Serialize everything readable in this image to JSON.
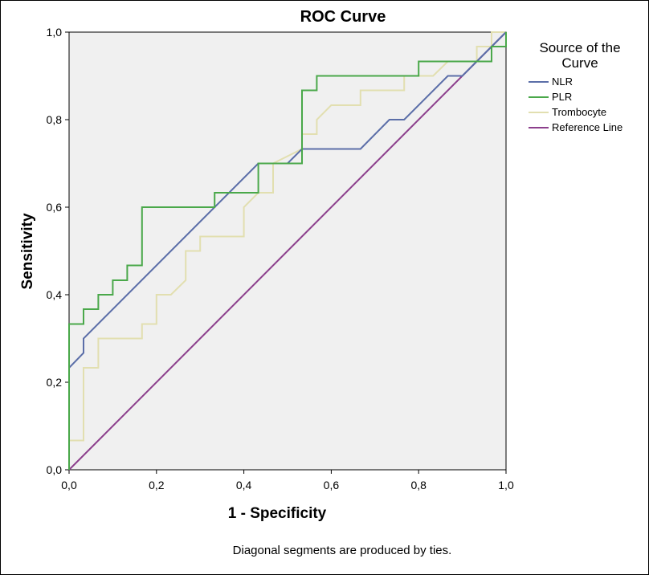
{
  "chart_data": {
    "type": "line",
    "title": "ROC Curve",
    "xlabel": "1 - Specificity",
    "ylabel": "Sensitivity",
    "xlim": [
      0,
      1
    ],
    "ylim": [
      0,
      1
    ],
    "xticks": [
      "0,0",
      "0,2",
      "0,4",
      "0,6",
      "0,8",
      "1,0"
    ],
    "yticks": [
      "0,0",
      "0,2",
      "0,4",
      "0,6",
      "0,8",
      "1,0"
    ],
    "tick_values": [
      0,
      0.2,
      0.4,
      0.6,
      0.8,
      1.0
    ],
    "grid": false,
    "plot_background": "#f0f0f0",
    "legend": {
      "position": "right",
      "title_lines": [
        "Source of the",
        "Curve"
      ]
    },
    "footnote": "Diagonal segments are produced by ties.",
    "series": [
      {
        "name": "NLR",
        "color": "#5b6ea8",
        "points": [
          [
            0,
            0
          ],
          [
            0,
            0.233
          ],
          [
            0.033,
            0.267
          ],
          [
            0.033,
            0.3
          ],
          [
            0.433,
            0.7
          ],
          [
            0.5,
            0.7
          ],
          [
            0.533,
            0.733
          ],
          [
            0.667,
            0.733
          ],
          [
            0.733,
            0.8
          ],
          [
            0.767,
            0.8
          ],
          [
            0.867,
            0.9
          ],
          [
            0.9,
            0.9
          ],
          [
            0.967,
            0.967
          ],
          [
            1,
            1
          ]
        ]
      },
      {
        "name": "PLR",
        "color": "#4aa84a",
        "points": [
          [
            0,
            0
          ],
          [
            0,
            0.333
          ],
          [
            0.033,
            0.333
          ],
          [
            0.033,
            0.367
          ],
          [
            0.067,
            0.367
          ],
          [
            0.067,
            0.4
          ],
          [
            0.1,
            0.4
          ],
          [
            0.1,
            0.433
          ],
          [
            0.133,
            0.433
          ],
          [
            0.133,
            0.467
          ],
          [
            0.167,
            0.467
          ],
          [
            0.167,
            0.6
          ],
          [
            0.333,
            0.6
          ],
          [
            0.333,
            0.633
          ],
          [
            0.433,
            0.633
          ],
          [
            0.433,
            0.7
          ],
          [
            0.533,
            0.7
          ],
          [
            0.533,
            0.867
          ],
          [
            0.567,
            0.867
          ],
          [
            0.567,
            0.9
          ],
          [
            0.8,
            0.9
          ],
          [
            0.8,
            0.933
          ],
          [
            0.967,
            0.933
          ],
          [
            0.967,
            0.967
          ],
          [
            1,
            0.967
          ],
          [
            1,
            1
          ]
        ]
      },
      {
        "name": "Trombocyte",
        "color": "#e2dfb0",
        "points": [
          [
            0,
            0
          ],
          [
            0,
            0.067
          ],
          [
            0.033,
            0.067
          ],
          [
            0.033,
            0.233
          ],
          [
            0.067,
            0.233
          ],
          [
            0.067,
            0.3
          ],
          [
            0.167,
            0.3
          ],
          [
            0.167,
            0.333
          ],
          [
            0.2,
            0.333
          ],
          [
            0.2,
            0.4
          ],
          [
            0.233,
            0.4
          ],
          [
            0.267,
            0.433
          ],
          [
            0.267,
            0.5
          ],
          [
            0.3,
            0.5
          ],
          [
            0.3,
            0.533
          ],
          [
            0.4,
            0.533
          ],
          [
            0.4,
            0.6
          ],
          [
            0.433,
            0.633
          ],
          [
            0.467,
            0.633
          ],
          [
            0.467,
            0.7
          ],
          [
            0.533,
            0.733
          ],
          [
            0.533,
            0.767
          ],
          [
            0.567,
            0.767
          ],
          [
            0.567,
            0.8
          ],
          [
            0.6,
            0.833
          ],
          [
            0.667,
            0.833
          ],
          [
            0.667,
            0.867
          ],
          [
            0.767,
            0.867
          ],
          [
            0.767,
            0.9
          ],
          [
            0.833,
            0.9
          ],
          [
            0.867,
            0.933
          ],
          [
            0.933,
            0.933
          ],
          [
            0.933,
            0.967
          ],
          [
            0.967,
            0.967
          ],
          [
            0.967,
            1
          ],
          [
            1,
            1
          ]
        ]
      },
      {
        "name": "Reference Line",
        "color": "#8c3f8c",
        "points": [
          [
            0,
            0
          ],
          [
            1,
            1
          ]
        ]
      }
    ]
  }
}
